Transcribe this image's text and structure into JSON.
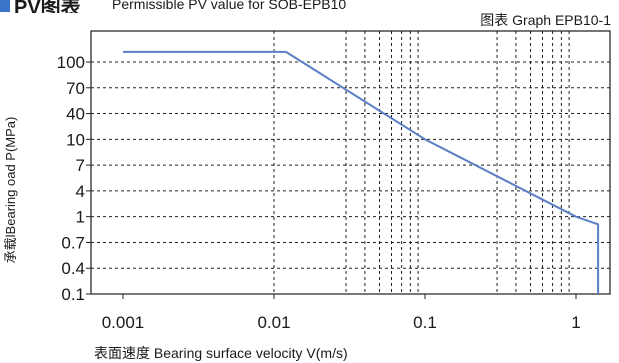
{
  "header": {
    "marker_color": "#3b74c8",
    "title": "PV图表",
    "subtitle": "Permissible PV value for SOB-EPB10"
  },
  "chart_data": {
    "type": "line",
    "reference": "图表 Graph EPB10-1",
    "xlabel": "表面速度 Bearing surface velocity V(m/s)",
    "ylabel": "承载lBearing oad P(MPa)",
    "x_scale": "log",
    "y_scale": "categorical-log",
    "xlim": [
      0.001,
      1.7
    ],
    "x_ticks": [
      {
        "value": 0.001,
        "label": "0.001"
      },
      {
        "value": 0.01,
        "label": "0.01"
      },
      {
        "value": 0.1,
        "label": "0.1"
      },
      {
        "value": 1,
        "label": "1"
      }
    ],
    "x_grid": [
      0.01,
      0.03,
      0.04,
      0.05,
      0.06,
      0.07,
      0.08,
      0.09,
      0.3,
      0.4,
      0.5,
      0.6,
      0.7,
      0.8,
      0.9
    ],
    "y_ticks": [
      {
        "value": 0.1,
        "label": "0.1"
      },
      {
        "value": 0.4,
        "label": "0.4"
      },
      {
        "value": 0.7,
        "label": "0.7"
      },
      {
        "value": 1,
        "label": "1"
      },
      {
        "value": 4,
        "label": "4"
      },
      {
        "value": 7,
        "label": "7"
      },
      {
        "value": 10,
        "label": "10"
      },
      {
        "value": 40,
        "label": "40"
      },
      {
        "value": 70,
        "label": "70"
      },
      {
        "value": 100,
        "label": "100"
      }
    ],
    "grid": true,
    "line_color": "#5b7fc4",
    "series": [
      {
        "points": [
          {
            "x": 0.001,
            "y": 115
          },
          {
            "x": 0.012,
            "y": 115
          },
          {
            "x": 0.1,
            "y": 10
          },
          {
            "x": 1.0,
            "y": 1.0
          },
          {
            "x": 1.4,
            "y": 0.9
          },
          {
            "x": 1.4,
            "y": 0.1
          }
        ]
      }
    ]
  }
}
